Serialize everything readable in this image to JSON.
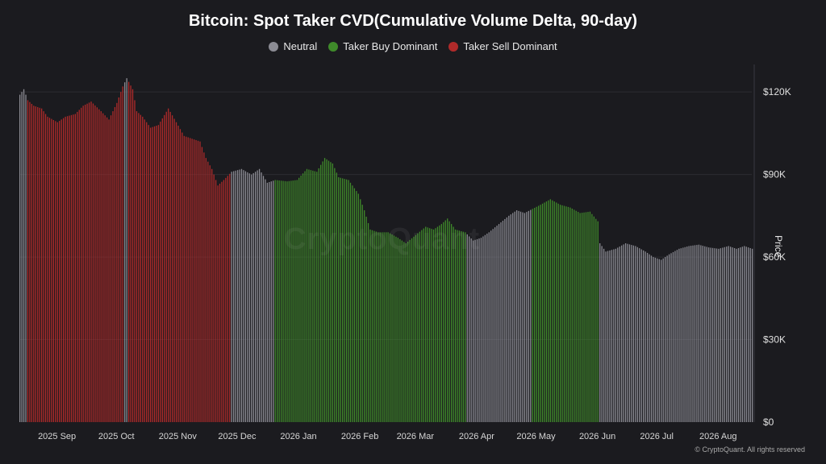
{
  "chart_data": {
    "type": "bar",
    "title": "Bitcoin: Spot Taker CVD(Cumulative Volume Delta, 90-day)",
    "ylabel": "Price",
    "ylim": [
      0,
      130000
    ],
    "y_ticks": [
      {
        "value": 0,
        "label": "$0"
      },
      {
        "value": 30000,
        "label": "$30K"
      },
      {
        "value": 60000,
        "label": "$60K"
      },
      {
        "value": 90000,
        "label": "$90K"
      },
      {
        "value": 120000,
        "label": "$120K"
      }
    ],
    "x_start": "2025-08-13",
    "x_end": "2026-08-18",
    "x_ticks": [
      {
        "date": "2025-09-01",
        "label": "2025 Sep"
      },
      {
        "date": "2025-10-01",
        "label": "2025 Oct"
      },
      {
        "date": "2025-11-01",
        "label": "2025 Nov"
      },
      {
        "date": "2025-12-01",
        "label": "2025 Dec"
      },
      {
        "date": "2026-01-01",
        "label": "2026 Jan"
      },
      {
        "date": "2026-02-01",
        "label": "2026 Feb"
      },
      {
        "date": "2026-03-01",
        "label": "2026 Mar"
      },
      {
        "date": "2026-04-01",
        "label": "2026 Apr"
      },
      {
        "date": "2026-05-01",
        "label": "2026 May"
      },
      {
        "date": "2026-06-01",
        "label": "2026 Jun"
      },
      {
        "date": "2026-07-01",
        "label": "2026 Jul"
      },
      {
        "date": "2026-08-01",
        "label": "2026 Aug"
      }
    ],
    "legend": [
      {
        "name": "Neutral",
        "color": "#8b8b93"
      },
      {
        "name": "Taker Buy Dominant",
        "color": "#3f8a2a"
      },
      {
        "name": "Taker Sell Dominant",
        "color": "#b02a2a"
      }
    ],
    "price_points": [
      [
        "2025-08-13",
        119000
      ],
      [
        "2025-08-15",
        121000
      ],
      [
        "2025-08-17",
        117000
      ],
      [
        "2025-08-20",
        115000
      ],
      [
        "2025-08-24",
        114000
      ],
      [
        "2025-08-27",
        111000
      ],
      [
        "2025-09-01",
        109000
      ],
      [
        "2025-09-05",
        111000
      ],
      [
        "2025-09-10",
        112000
      ],
      [
        "2025-09-14",
        115000
      ],
      [
        "2025-09-18",
        116500
      ],
      [
        "2025-09-23",
        113000
      ],
      [
        "2025-09-27",
        110000
      ],
      [
        "2025-10-01",
        116000
      ],
      [
        "2025-10-04",
        122000
      ],
      [
        "2025-10-06",
        125000
      ],
      [
        "2025-10-09",
        121000
      ],
      [
        "2025-10-11",
        113000
      ],
      [
        "2025-10-14",
        111000
      ],
      [
        "2025-10-18",
        107000
      ],
      [
        "2025-10-22",
        108000
      ],
      [
        "2025-10-27",
        114000
      ],
      [
        "2025-10-31",
        109000
      ],
      [
        "2025-11-04",
        104000
      ],
      [
        "2025-11-08",
        103000
      ],
      [
        "2025-11-12",
        102000
      ],
      [
        "2025-11-15",
        96000
      ],
      [
        "2025-11-18",
        92000
      ],
      [
        "2025-11-21",
        86000
      ],
      [
        "2025-11-24",
        88000
      ],
      [
        "2025-11-28",
        91000
      ],
      [
        "2025-12-03",
        92000
      ],
      [
        "2025-12-08",
        90000
      ],
      [
        "2025-12-12",
        92000
      ],
      [
        "2025-12-16",
        87000
      ],
      [
        "2025-12-20",
        88000
      ],
      [
        "2025-12-26",
        87500
      ],
      [
        "2025-12-31",
        88000
      ],
      [
        "2026-01-05",
        92000
      ],
      [
        "2026-01-10",
        91000
      ],
      [
        "2026-01-14",
        96000
      ],
      [
        "2026-01-18",
        94000
      ],
      [
        "2026-01-21",
        89000
      ],
      [
        "2026-01-26",
        88000
      ],
      [
        "2026-01-31",
        83000
      ],
      [
        "2026-02-03",
        77000
      ],
      [
        "2026-02-06",
        70000
      ],
      [
        "2026-02-10",
        69000
      ],
      [
        "2026-02-15",
        69000
      ],
      [
        "2026-02-20",
        67000
      ],
      [
        "2026-02-24",
        65000
      ],
      [
        "2026-03-01",
        68000
      ],
      [
        "2026-03-06",
        71000
      ],
      [
        "2026-03-10",
        70000
      ],
      [
        "2026-03-14",
        72000
      ],
      [
        "2026-03-17",
        74000
      ],
      [
        "2026-03-21",
        70000
      ],
      [
        "2026-03-26",
        69000
      ],
      [
        "2026-03-30",
        66000
      ],
      [
        "2026-04-03",
        67000
      ],
      [
        "2026-04-07",
        69000
      ],
      [
        "2026-04-12",
        72000
      ],
      [
        "2026-04-17",
        75000
      ],
      [
        "2026-04-21",
        77000
      ],
      [
        "2026-04-25",
        76000
      ],
      [
        "2026-04-29",
        77500
      ],
      [
        "2026-05-03",
        79000
      ],
      [
        "2026-05-08",
        81000
      ],
      [
        "2026-05-13",
        79000
      ],
      [
        "2026-05-18",
        78000
      ],
      [
        "2026-05-23",
        76000
      ],
      [
        "2026-05-28",
        76500
      ],
      [
        "2026-06-01",
        73000
      ],
      [
        "2026-06-02",
        65000
      ],
      [
        "2026-06-05",
        62000
      ],
      [
        "2026-06-10",
        63000
      ],
      [
        "2026-06-15",
        65000
      ],
      [
        "2026-06-20",
        64000
      ],
      [
        "2026-06-25",
        62000
      ],
      [
        "2026-06-29",
        60000
      ],
      [
        "2026-07-03",
        59000
      ],
      [
        "2026-07-07",
        61000
      ],
      [
        "2026-07-12",
        63000
      ],
      [
        "2026-07-17",
        64000
      ],
      [
        "2026-07-22",
        64500
      ],
      [
        "2026-07-27",
        63500
      ],
      [
        "2026-08-01",
        63000
      ],
      [
        "2026-08-06",
        64000
      ],
      [
        "2026-08-10",
        63000
      ],
      [
        "2026-08-14",
        64000
      ],
      [
        "2026-08-18",
        63000
      ]
    ],
    "regimes": [
      {
        "from": "2025-08-13",
        "to": "2025-08-16",
        "state": "Neutral"
      },
      {
        "from": "2025-08-17",
        "to": "2025-10-04",
        "state": "Taker Sell Dominant"
      },
      {
        "from": "2025-10-05",
        "to": "2025-10-06",
        "state": "Neutral"
      },
      {
        "from": "2025-10-07",
        "to": "2025-11-27",
        "state": "Taker Sell Dominant"
      },
      {
        "from": "2025-11-28",
        "to": "2025-12-19",
        "state": "Neutral"
      },
      {
        "from": "2025-12-20",
        "to": "2026-02-14",
        "state": "Taker Buy Dominant"
      },
      {
        "from": "2026-02-15",
        "to": "2026-03-26",
        "state": "Taker Buy Dominant"
      },
      {
        "from": "2026-03-27",
        "to": "2026-04-28",
        "state": "Neutral"
      },
      {
        "from": "2026-04-29",
        "to": "2026-06-01",
        "state": "Taker Buy Dominant"
      },
      {
        "from": "2026-06-02",
        "to": "2026-08-18",
        "state": "Neutral"
      }
    ],
    "grid": true,
    "legend_position": "top-center"
  },
  "watermark": "CryptoQuant",
  "copyright": "© CryptoQuant. All rights reserved"
}
